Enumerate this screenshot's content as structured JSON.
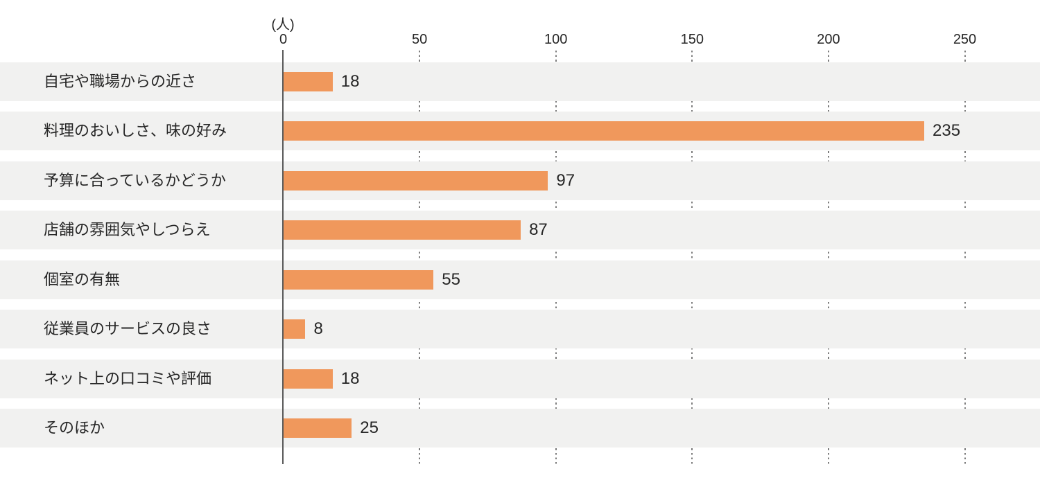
{
  "chart_data": {
    "type": "bar",
    "orientation": "horizontal",
    "unit_label": "(人)",
    "categories": [
      "自宅や職場からの近さ",
      "料理のおいしさ、味の好み",
      "予算に合っているかどうか",
      "店舗の雰囲気やしつらえ",
      "個室の有無",
      "従業員のサービスの良さ",
      "ネット上の口コミや評価",
      "そのほか"
    ],
    "values": [
      18,
      235,
      97,
      87,
      55,
      8,
      18,
      25
    ],
    "xlim": [
      0,
      250
    ],
    "ticks": [
      0,
      50,
      100,
      150,
      200,
      250
    ],
    "grid": "dotted vertical lines at ticks, visible in gaps between row bands",
    "legend": "none",
    "colors": {
      "bar": "#F0985C",
      "row_band": "#F1F1F0",
      "axis_line": "#595959",
      "grid_dots": "#7D7D7D",
      "text": "#262626"
    }
  }
}
